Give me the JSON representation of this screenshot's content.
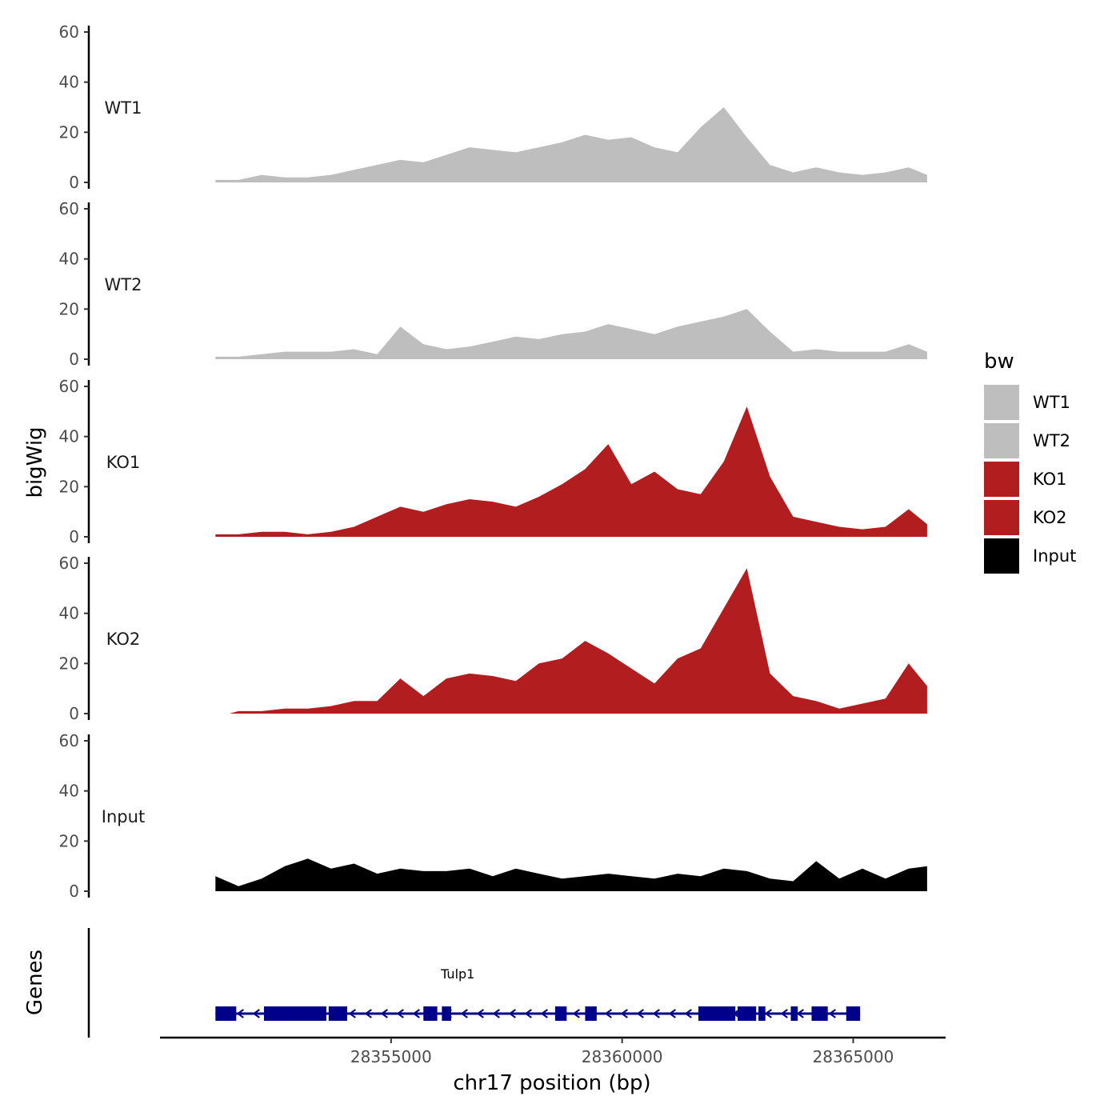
{
  "chart_data": {
    "type": "area",
    "chromosome": "chr17",
    "xlabel": "chr17 position (bp)",
    "ylabel": "bigWig",
    "genes_label": "Genes",
    "xlim": [
      28350000,
      28367000
    ],
    "x_ticks": [
      28355000,
      28360000,
      28365000
    ],
    "x_tick_labels": [
      "28355000",
      "28360000",
      "28365000"
    ],
    "ylim": [
      0,
      60
    ],
    "y_ticks": [
      0,
      20,
      40,
      60
    ],
    "y_tick_labels": [
      "0",
      "20",
      "40",
      "60"
    ],
    "grid": false,
    "legend": {
      "title": "bw",
      "position": "right",
      "entries": [
        {
          "label": "WT1",
          "color": "#bebebe"
        },
        {
          "label": "WT2",
          "color": "#bebebe"
        },
        {
          "label": "KO1",
          "color": "#b21d1f"
        },
        {
          "label": "KO2",
          "color": "#b21d1f"
        },
        {
          "label": "Input",
          "color": "#000000"
        }
      ]
    },
    "series": [
      {
        "name": "WT1",
        "color": "#bebebe",
        "x": [
          28351200,
          28351700,
          28352200,
          28352700,
          28353200,
          28353700,
          28354200,
          28354700,
          28355200,
          28355700,
          28356200,
          28356700,
          28357200,
          28357700,
          28358200,
          28358700,
          28359200,
          28359700,
          28360200,
          28360700,
          28361200,
          28361700,
          28362200,
          28362700,
          28363200,
          28363700,
          28364200,
          28364700,
          28365200,
          28365700,
          28366200,
          28366600
        ],
        "values": [
          1,
          1,
          3,
          2,
          2,
          3,
          5,
          7,
          9,
          8,
          11,
          14,
          13,
          12,
          14,
          16,
          19,
          17,
          18,
          14,
          12,
          22,
          30,
          18,
          7,
          4,
          6,
          4,
          3,
          4,
          6,
          3
        ]
      },
      {
        "name": "WT2",
        "color": "#bebebe",
        "x": [
          28351200,
          28351700,
          28352200,
          28352700,
          28353200,
          28353700,
          28354200,
          28354700,
          28355200,
          28355700,
          28356200,
          28356700,
          28357200,
          28357700,
          28358200,
          28358700,
          28359200,
          28359700,
          28360200,
          28360700,
          28361200,
          28361700,
          28362200,
          28362700,
          28363200,
          28363700,
          28364200,
          28364700,
          28365200,
          28365700,
          28366200,
          28366600
        ],
        "values": [
          1,
          1,
          2,
          3,
          3,
          3,
          4,
          2,
          13,
          6,
          4,
          5,
          7,
          9,
          8,
          10,
          11,
          14,
          12,
          10,
          13,
          15,
          17,
          20,
          11,
          3,
          4,
          3,
          3,
          3,
          6,
          3
        ]
      },
      {
        "name": "KO1",
        "color": "#b21d1f",
        "x": [
          28351200,
          28351700,
          28352200,
          28352700,
          28353200,
          28353700,
          28354200,
          28354700,
          28355200,
          28355700,
          28356200,
          28356700,
          28357200,
          28357700,
          28358200,
          28358700,
          28359200,
          28359700,
          28360200,
          28360700,
          28361200,
          28361700,
          28362200,
          28362700,
          28363200,
          28363700,
          28364200,
          28364700,
          28365200,
          28365700,
          28366200,
          28366600
        ],
        "values": [
          1,
          1,
          2,
          2,
          1,
          2,
          4,
          8,
          12,
          10,
          13,
          15,
          14,
          12,
          16,
          21,
          27,
          37,
          21,
          26,
          19,
          17,
          30,
          52,
          24,
          8,
          6,
          4,
          3,
          4,
          11,
          5
        ]
      },
      {
        "name": "KO2",
        "color": "#b21d1f",
        "x": [
          28351500,
          28351700,
          28352200,
          28352700,
          28353200,
          28353700,
          28354200,
          28354700,
          28355200,
          28355700,
          28356200,
          28356700,
          28357200,
          28357700,
          28358200,
          28358700,
          28359200,
          28359700,
          28360200,
          28360700,
          28361200,
          28361700,
          28362200,
          28362700,
          28363200,
          28363700,
          28364200,
          28364700,
          28365200,
          28365700,
          28366200,
          28366600
        ],
        "values": [
          0,
          1,
          1,
          2,
          2,
          3,
          5,
          5,
          14,
          7,
          14,
          16,
          15,
          13,
          20,
          22,
          29,
          24,
          18,
          12,
          22,
          26,
          42,
          58,
          16,
          7,
          5,
          2,
          4,
          6,
          20,
          11
        ]
      },
      {
        "name": "Input",
        "color": "#000000",
        "x": [
          28351200,
          28351700,
          28352200,
          28352700,
          28353200,
          28353700,
          28354200,
          28354700,
          28355200,
          28355700,
          28356200,
          28356700,
          28357200,
          28357700,
          28358200,
          28358700,
          28359200,
          28359700,
          28360200,
          28360700,
          28361200,
          28361700,
          28362200,
          28362700,
          28363200,
          28363700,
          28364200,
          28364700,
          28365200,
          28365700,
          28366200,
          28366600
        ],
        "values": [
          6,
          2,
          5,
          10,
          13,
          9,
          11,
          7,
          9,
          8,
          8,
          9,
          6,
          9,
          7,
          5,
          6,
          7,
          6,
          5,
          7,
          6,
          9,
          8,
          5,
          4,
          12,
          5,
          9,
          5,
          9,
          10
        ]
      }
    ],
    "gene_track": {
      "name": "Tulp1",
      "strand": "-",
      "color": "#00008b",
      "start": 28351200,
      "end": 28365150,
      "exons": [
        [
          28351200,
          28351650
        ],
        [
          28352250,
          28353600
        ],
        [
          28353650,
          28354050
        ],
        [
          28355700,
          28356000
        ],
        [
          28356100,
          28356300
        ],
        [
          28358550,
          28358800
        ],
        [
          28359200,
          28359450
        ],
        [
          28361650,
          28362450
        ],
        [
          28362500,
          28362900
        ],
        [
          28362950,
          28363100
        ],
        [
          28363650,
          28363800
        ],
        [
          28364100,
          28364450
        ],
        [
          28364850,
          28365150
        ]
      ]
    }
  }
}
